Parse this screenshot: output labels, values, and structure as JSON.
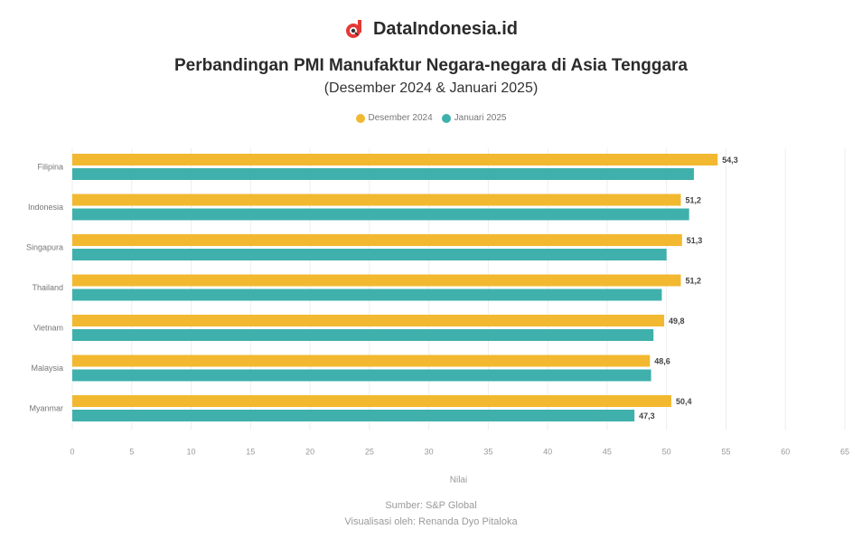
{
  "brand": {
    "name": "DataIndonesia.id",
    "logo_icon": "dataindonesia-logo-icon"
  },
  "header": {
    "title": "Perbandingan PMI Manufaktur Negara-negara di Asia Tenggara",
    "subtitle": "(Desember 2024 & Januari 2025)"
  },
  "chart_data": {
    "type": "bar",
    "orientation": "horizontal",
    "categories": [
      "Filipina",
      "Indonesia",
      "Singapura",
      "Thailand",
      "Vietnam",
      "Malaysia",
      "Myanmar"
    ],
    "series": [
      {
        "name": "Desember 2024",
        "color": "#F2B830",
        "values": [
          54.3,
          51.2,
          51.3,
          51.2,
          49.8,
          48.6,
          50.4
        ]
      },
      {
        "name": "Januari 2025",
        "color": "#3FB0AC",
        "values": [
          52.3,
          51.9,
          50.0,
          49.6,
          48.9,
          48.7,
          47.3
        ]
      }
    ],
    "data_labels": [
      "54,3",
      "51,2",
      "51,3",
      "51,2",
      "49,8",
      "48,6",
      "50,4",
      "",
      "",
      "",
      "",
      "",
      "",
      "47,3"
    ],
    "x_ticks": [
      "0",
      "5",
      "10",
      "15",
      "20",
      "25",
      "30",
      "35",
      "40",
      "45",
      "50",
      "55",
      "60",
      "65"
    ],
    "xlim": [
      0,
      65
    ],
    "xlabel": "Nilai",
    "ylabel": "",
    "grid": true,
    "legend_position": "top-center"
  },
  "footer": {
    "source": "Sumber: S&P Global",
    "credit": "Visualisasi oleh: Renanda Dyo Pitaloka"
  }
}
